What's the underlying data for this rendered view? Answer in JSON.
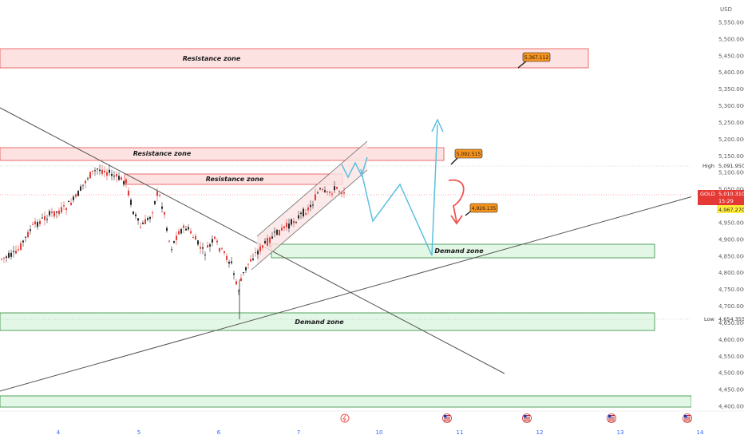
{
  "chart_data": {
    "type": "candlestick",
    "symbol": "GOLD",
    "currency": "USD",
    "y_axis": {
      "ticks": [
        "5,550.000",
        "5,500.000",
        "5,450.000",
        "5,400.000",
        "5,350.000",
        "5,300.000",
        "5,250.000",
        "5,200.000",
        "5,150.000",
        "5,100.000",
        "5,050.000",
        "5,000.000",
        "4,950.000",
        "4,900.000",
        "4,850.000",
        "4,800.000",
        "4,750.000",
        "4,700.000",
        "4,650.000",
        "4,600.000",
        "4,550.000",
        "4,500.000",
        "4,450.000",
        "4,400.000"
      ],
      "tick_values": [
        5550,
        5500,
        5450,
        5400,
        5350,
        5300,
        5250,
        5200,
        5150,
        5100,
        5050,
        5000,
        4950,
        4900,
        4850,
        4800,
        4750,
        4700,
        4650,
        4600,
        4550,
        4500,
        4450,
        4400
      ],
      "range": [
        4390,
        5580
      ]
    },
    "x_axis": {
      "ticks": [
        "4",
        "5",
        "6",
        "7",
        "10",
        "11",
        "12",
        "13",
        "14"
      ]
    },
    "last_price": {
      "label": "GOLD",
      "value": "5,010.310",
      "countdown": "15:29"
    },
    "second_price": "4,967.270",
    "high": {
      "label": "High",
      "value": "5,091.950"
    },
    "low": {
      "label": "Low",
      "value": "4,654.355"
    },
    "zones": [
      {
        "kind": "resistance",
        "label": "Resistance  zone",
        "top": 5425,
        "bottom": 5370
      },
      {
        "kind": "resistance",
        "label": "Resistance  zone",
        "top": 5136,
        "bottom": 5100
      },
      {
        "kind": "resistance",
        "label": "Resistance  zone",
        "top": 5070,
        "bottom": 5040
      },
      {
        "kind": "demand",
        "label": "Demand zone",
        "top": 4867,
        "bottom": 4828
      },
      {
        "kind": "demand",
        "label": "Demand zone",
        "top": 4676,
        "bottom": 4625
      },
      {
        "kind": "demand",
        "label": "",
        "top": 4432,
        "bottom": 4398
      }
    ],
    "price_labels": [
      "5,367.112",
      "5,092.515",
      "4,926.135"
    ],
    "price_label_values": [
      5367.112,
      5092.515,
      4926.135
    ],
    "colors": {
      "resistance_fill": "#fde2e2",
      "resistance_border": "#e74c4c",
      "demand_fill": "#e3f7e6",
      "demand_border": "#2e8b3a",
      "bull": "#2a2a2a",
      "bear": "#e0403a",
      "projection": "#5bc0de",
      "reversal": "#ef5350",
      "price_tag": "#f7941d",
      "last_price_tag": "#e53935"
    },
    "events_icon": "lightning-icon",
    "calendar_icon": "us-flag-icon"
  }
}
